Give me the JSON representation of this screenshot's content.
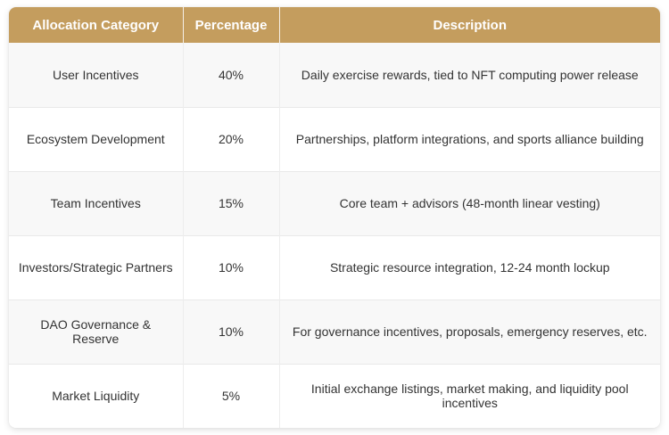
{
  "table": {
    "columns": [
      {
        "label": "Allocation Category"
      },
      {
        "label": "Percentage"
      },
      {
        "label": "Description"
      }
    ],
    "rows": [
      {
        "category": "User Incentives",
        "percentage": "40%",
        "description": "Daily exercise rewards, tied to NFT computing power release"
      },
      {
        "category": "Ecosystem Development",
        "percentage": "20%",
        "description": "Partnerships, platform integrations, and sports alliance building"
      },
      {
        "category": "Team Incentives",
        "percentage": "15%",
        "description": "Core team + advisors (48-month linear vesting)"
      },
      {
        "category": "Investors/Strategic Partners",
        "percentage": "10%",
        "description": "Strategic resource integration, 12-24 month lockup"
      },
      {
        "category": "DAO Governance & Reserve",
        "percentage": "10%",
        "description": "For governance incentives, proposals, emergency reserves, etc."
      },
      {
        "category": "Market Liquidity",
        "percentage": "5%",
        "description": "Initial exchange listings, market making, and liquidity pool incentives"
      }
    ],
    "colors": {
      "header_bg": "#C49D5E",
      "header_text": "#FFFFFF",
      "row_bg": "#FFFFFF",
      "row_alt_bg": "#F8F8F8",
      "divider": "#E9E9E9",
      "body_text": "#333333"
    }
  }
}
